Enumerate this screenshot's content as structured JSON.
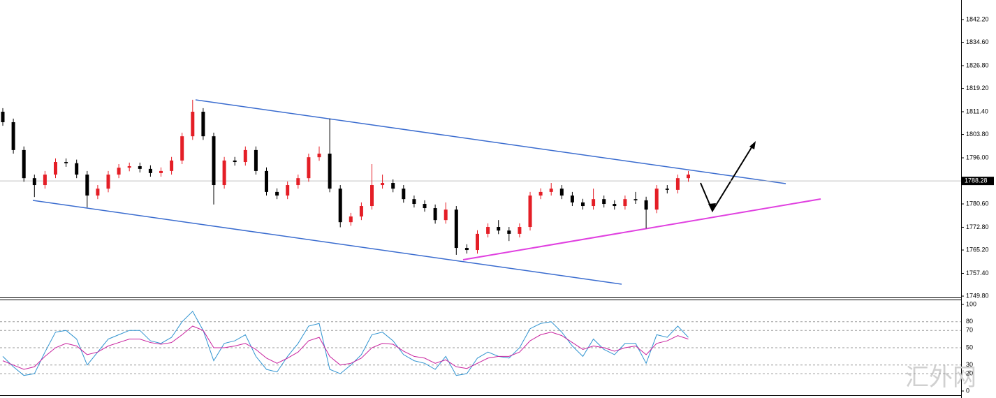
{
  "chart_data": {
    "type": "candlestick",
    "open": [
      1811.4,
      1807.9,
      1798.6,
      1789.2,
      1786.9,
      1790.4,
      1794.6,
      1794.2,
      1790.4,
      1783.4,
      1785.7,
      1790.4,
      1792.7,
      1793.2,
      1792.3,
      1790.9,
      1791.6,
      1795.1,
      1803.2,
      1811.4,
      1803.2,
      1786.9,
      1795.1,
      1794.6,
      1798.6,
      1791.6,
      1784.6,
      1783.4,
      1786.9,
      1789.2,
      1796.2,
      1797.4,
      1785.7,
      1774.5,
      1776.4,
      1779.9,
      1786.9,
      1787.6,
      1785.7,
      1782.2,
      1780.6,
      1779.2,
      1775.2,
      1778.7,
      1765.9,
      1765.2,
      1770.6,
      1772.9,
      1771.7,
      1770.6,
      1772.9,
      1783.4,
      1784.6,
      1785.7,
      1783.4,
      1781.1,
      1779.9,
      1782.2,
      1780.6,
      1779.9,
      1782.2,
      1781.8,
      1778.7,
      1785.7,
      1785.3,
      1789.2
    ],
    "high": [
      1812.6,
      1809.1,
      1799.8,
      1790.4,
      1791.6,
      1795.8,
      1795.8,
      1795.4,
      1791.6,
      1786.9,
      1791.6,
      1793.9,
      1794.4,
      1794.4,
      1793.5,
      1792.8,
      1796.3,
      1804.4,
      1815.4,
      1812.6,
      1804.4,
      1796.3,
      1796.3,
      1799.8,
      1799.8,
      1792.8,
      1785.8,
      1788.1,
      1790.4,
      1797.4,
      1799.8,
      1809.1,
      1786.9,
      1777.6,
      1781.1,
      1793.9,
      1790.4,
      1788.8,
      1786.9,
      1783.4,
      1781.8,
      1780.4,
      1781.1,
      1779.9,
      1767.1,
      1771.8,
      1774.1,
      1775.2,
      1772.9,
      1774.1,
      1784.6,
      1785.8,
      1787.6,
      1786.9,
      1784.6,
      1782.3,
      1785.7,
      1783.4,
      1781.8,
      1783.4,
      1784.6,
      1783.0,
      1786.9,
      1786.9,
      1790.4,
      1791.6
    ],
    "low": [
      1806.7,
      1797.4,
      1788.0,
      1782.9,
      1785.7,
      1789.2,
      1793.0,
      1789.2,
      1779.4,
      1782.2,
      1784.5,
      1789.2,
      1791.5,
      1791.1,
      1789.7,
      1789.7,
      1790.4,
      1793.9,
      1802.0,
      1802.0,
      1780.4,
      1785.7,
      1793.4,
      1793.4,
      1790.4,
      1783.4,
      1782.2,
      1782.2,
      1785.7,
      1788.0,
      1795.0,
      1784.5,
      1772.8,
      1773.3,
      1775.2,
      1778.7,
      1785.7,
      1784.5,
      1781.0,
      1779.4,
      1778.0,
      1774.0,
      1774.0,
      1763.6,
      1764.0,
      1764.0,
      1769.4,
      1770.5,
      1768.2,
      1769.4,
      1771.7,
      1782.2,
      1783.4,
      1782.2,
      1779.9,
      1778.7,
      1778.7,
      1779.4,
      1778.7,
      1778.7,
      1780.6,
      1772.4,
      1777.5,
      1784.1,
      1784.1,
      1788.0
    ],
    "close": [
      1807.9,
      1798.6,
      1789.2,
      1786.9,
      1790.4,
      1794.6,
      1794.2,
      1790.4,
      1783.4,
      1785.7,
      1790.4,
      1792.7,
      1793.2,
      1792.3,
      1790.9,
      1791.6,
      1795.1,
      1803.2,
      1811.4,
      1803.2,
      1786.9,
      1795.1,
      1794.6,
      1798.6,
      1791.6,
      1784.6,
      1783.4,
      1786.9,
      1789.2,
      1796.2,
      1797.4,
      1785.7,
      1774.5,
      1776.4,
      1779.9,
      1786.9,
      1787.6,
      1785.7,
      1782.2,
      1780.6,
      1779.2,
      1775.2,
      1778.7,
      1765.9,
      1765.2,
      1770.6,
      1772.9,
      1771.7,
      1770.6,
      1772.9,
      1783.4,
      1784.6,
      1785.7,
      1783.4,
      1781.1,
      1779.9,
      1782.2,
      1780.6,
      1779.9,
      1782.2,
      1781.8,
      1778.7,
      1785.7,
      1785.3,
      1789.2,
      1790.4
    ],
    "up_color": "#e41e26",
    "down_color": "#000000",
    "ylim": [
      1749.58,
      1848.73
    ],
    "yticks": [
      {
        "value": 1842.2,
        "label": "1842.20"
      },
      {
        "value": 1834.6,
        "label": "1834.60"
      },
      {
        "value": 1826.8,
        "label": "1826.80"
      },
      {
        "value": 1819.2,
        "label": "1819.20"
      },
      {
        "value": 1811.4,
        "label": "1811.40"
      },
      {
        "value": 1803.8,
        "label": "1803.80"
      },
      {
        "value": 1796,
        "label": "1796.00"
      },
      {
        "value": 1780.6,
        "label": "1780.60"
      },
      {
        "value": 1772.8,
        "label": "1772.80"
      },
      {
        "value": 1765.2,
        "label": "1765.20"
      },
      {
        "value": 1757.4,
        "label": "1757.40"
      },
      {
        "value": 1749.8,
        "label": "1749.80"
      }
    ],
    "last_price": 1788.28,
    "oscillator": {
      "type": "line",
      "ylim": [
        0,
        100
      ],
      "yticks": [
        100,
        80,
        70,
        50,
        30,
        20,
        0
      ],
      "series": [
        {
          "color": "#2f93d0",
          "values": [
            40,
            28,
            18,
            20,
            45,
            68,
            70,
            60,
            30,
            45,
            60,
            65,
            70,
            70,
            58,
            55,
            62,
            80,
            92,
            70,
            35,
            55,
            58,
            65,
            40,
            25,
            22,
            40,
            55,
            75,
            78,
            25,
            20,
            30,
            42,
            65,
            68,
            58,
            42,
            35,
            32,
            25,
            40,
            18,
            20,
            38,
            45,
            40,
            38,
            50,
            72,
            78,
            80,
            68,
            52,
            40,
            60,
            48,
            42,
            55,
            55,
            32,
            65,
            62,
            75,
            62
          ]
        },
        {
          "color": "#c8229e",
          "values": [
            35,
            30,
            25,
            28,
            40,
            50,
            55,
            52,
            42,
            45,
            52,
            56,
            60,
            60,
            56,
            54,
            56,
            65,
            75,
            70,
            50,
            50,
            52,
            55,
            48,
            38,
            32,
            38,
            45,
            58,
            62,
            40,
            30,
            32,
            38,
            50,
            55,
            54,
            46,
            40,
            38,
            32,
            36,
            28,
            26,
            32,
            38,
            40,
            40,
            45,
            58,
            65,
            68,
            64,
            56,
            48,
            52,
            50,
            46,
            50,
            52,
            42,
            55,
            58,
            64,
            60
          ]
        }
      ]
    },
    "watermark": "汇外网"
  }
}
